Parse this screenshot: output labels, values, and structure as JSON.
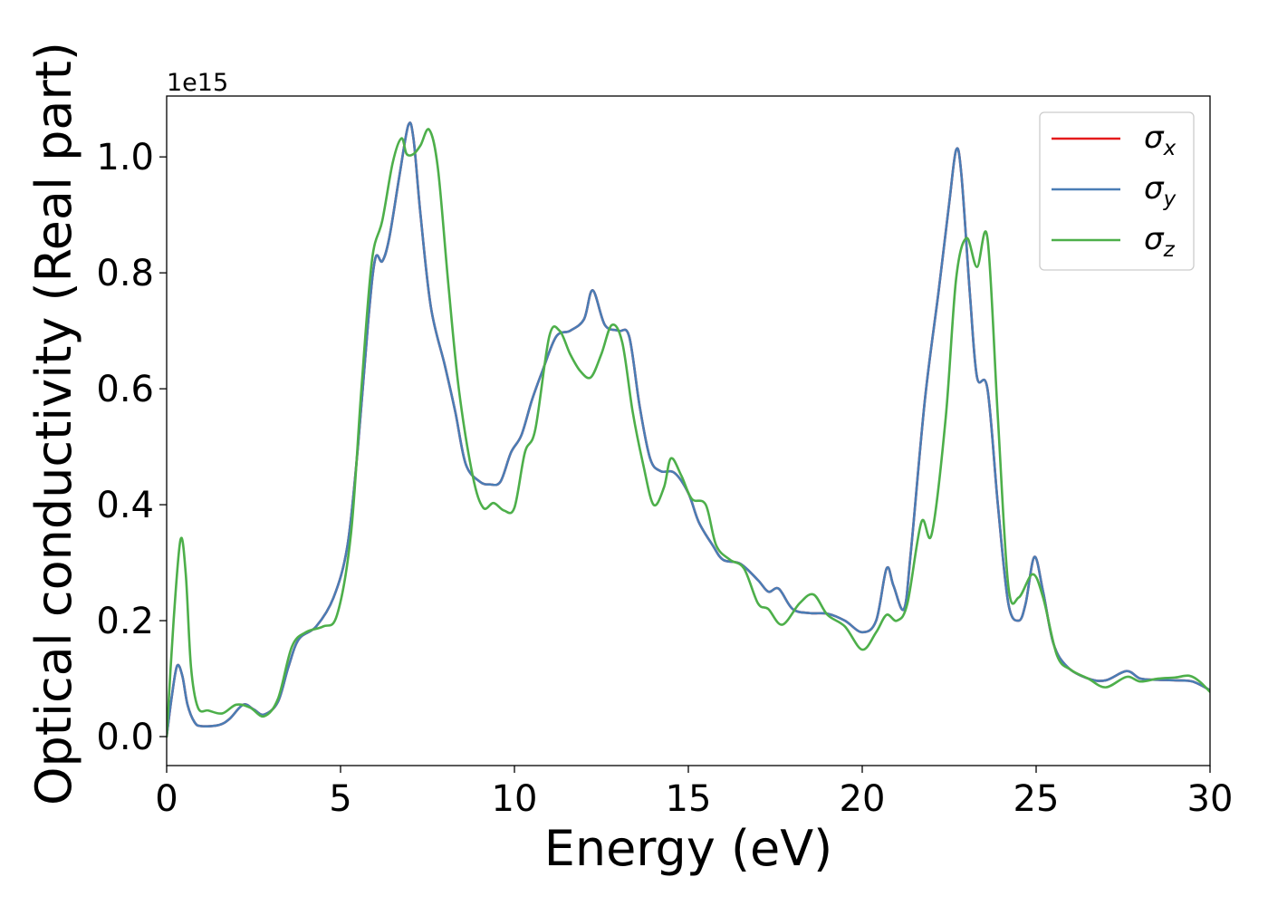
{
  "chart_data": {
    "type": "line",
    "title": "",
    "xlabel": "Energy (eV)",
    "ylabel": "Optical conductivity (Real part)",
    "y_offset_label": "1e15",
    "xlim": [
      0,
      30
    ],
    "ylim": [
      -0.05,
      1.105
    ],
    "xticks": [
      0,
      5,
      10,
      15,
      20,
      25,
      30
    ],
    "xtick_labels": [
      "0",
      "5",
      "10",
      "15",
      "20",
      "25",
      "30"
    ],
    "yticks": [
      0.0,
      0.2,
      0.4,
      0.6,
      0.8,
      1.0
    ],
    "ytick_labels": [
      "0.0",
      "0.2",
      "0.4",
      "0.6",
      "0.8",
      "1.0"
    ],
    "grid": false,
    "legend_position": "top-right",
    "series": [
      {
        "name": "σx",
        "symbol": "σ",
        "subscript": "x",
        "color": "#e41a1c",
        "points": [
          [
            0,
            0
          ],
          [
            0.15,
            0.07
          ],
          [
            0.3,
            0.122
          ],
          [
            0.45,
            0.105
          ],
          [
            0.6,
            0.055
          ],
          [
            0.8,
            0.025
          ],
          [
            1.0,
            0.018
          ],
          [
            1.5,
            0.02
          ],
          [
            1.8,
            0.03
          ],
          [
            2.2,
            0.055
          ],
          [
            2.5,
            0.047
          ],
          [
            2.8,
            0.038
          ],
          [
            3.2,
            0.06
          ],
          [
            3.5,
            0.12
          ],
          [
            3.8,
            0.168
          ],
          [
            4.3,
            0.19
          ],
          [
            4.8,
            0.24
          ],
          [
            5.2,
            0.33
          ],
          [
            5.5,
            0.5
          ],
          [
            5.8,
            0.72
          ],
          [
            6.0,
            0.825
          ],
          [
            6.2,
            0.82
          ],
          [
            6.4,
            0.86
          ],
          [
            6.7,
            0.97
          ],
          [
            6.95,
            1.055
          ],
          [
            7.1,
            1.03
          ],
          [
            7.3,
            0.9
          ],
          [
            7.6,
            0.74
          ],
          [
            8.0,
            0.64
          ],
          [
            8.3,
            0.56
          ],
          [
            8.6,
            0.47
          ],
          [
            9.0,
            0.44
          ],
          [
            9.3,
            0.435
          ],
          [
            9.6,
            0.44
          ],
          [
            9.9,
            0.49
          ],
          [
            10.2,
            0.52
          ],
          [
            10.5,
            0.58
          ],
          [
            10.8,
            0.63
          ],
          [
            11.2,
            0.69
          ],
          [
            11.6,
            0.7
          ],
          [
            12.0,
            0.72
          ],
          [
            12.25,
            0.77
          ],
          [
            12.6,
            0.71
          ],
          [
            13.0,
            0.7
          ],
          [
            13.3,
            0.69
          ],
          [
            13.6,
            0.57
          ],
          [
            13.9,
            0.48
          ],
          [
            14.2,
            0.458
          ],
          [
            14.6,
            0.455
          ],
          [
            15.0,
            0.42
          ],
          [
            15.3,
            0.37
          ],
          [
            15.7,
            0.33
          ],
          [
            16.0,
            0.305
          ],
          [
            16.5,
            0.298
          ],
          [
            17.0,
            0.27
          ],
          [
            17.3,
            0.25
          ],
          [
            17.6,
            0.255
          ],
          [
            18.0,
            0.22
          ],
          [
            18.5,
            0.213
          ],
          [
            19.0,
            0.212
          ],
          [
            19.5,
            0.2
          ],
          [
            20.0,
            0.18
          ],
          [
            20.4,
            0.2
          ],
          [
            20.7,
            0.29
          ],
          [
            20.9,
            0.26
          ],
          [
            21.2,
            0.22
          ],
          [
            21.4,
            0.32
          ],
          [
            21.8,
            0.58
          ],
          [
            22.2,
            0.77
          ],
          [
            22.5,
            0.92
          ],
          [
            22.7,
            1.012
          ],
          [
            22.85,
            0.97
          ],
          [
            23.1,
            0.76
          ],
          [
            23.3,
            0.62
          ],
          [
            23.6,
            0.6
          ],
          [
            23.9,
            0.4
          ],
          [
            24.2,
            0.23
          ],
          [
            24.5,
            0.2
          ],
          [
            24.7,
            0.23
          ],
          [
            24.95,
            0.31
          ],
          [
            25.2,
            0.25
          ],
          [
            25.5,
            0.16
          ],
          [
            25.9,
            0.12
          ],
          [
            26.5,
            0.1
          ],
          [
            27.0,
            0.097
          ],
          [
            27.6,
            0.113
          ],
          [
            28.0,
            0.1
          ],
          [
            28.5,
            0.098
          ],
          [
            29.0,
            0.097
          ],
          [
            29.5,
            0.095
          ],
          [
            30.0,
            0.08
          ]
        ]
      },
      {
        "name": "σy",
        "symbol": "σ",
        "subscript": "y",
        "color": "#4a7db5",
        "points": [
          [
            0,
            0
          ],
          [
            0.15,
            0.07
          ],
          [
            0.3,
            0.122
          ],
          [
            0.45,
            0.105
          ],
          [
            0.6,
            0.055
          ],
          [
            0.8,
            0.025
          ],
          [
            1.0,
            0.018
          ],
          [
            1.5,
            0.02
          ],
          [
            1.8,
            0.03
          ],
          [
            2.2,
            0.055
          ],
          [
            2.5,
            0.047
          ],
          [
            2.8,
            0.038
          ],
          [
            3.2,
            0.06
          ],
          [
            3.5,
            0.12
          ],
          [
            3.8,
            0.168
          ],
          [
            4.3,
            0.19
          ],
          [
            4.8,
            0.24
          ],
          [
            5.2,
            0.33
          ],
          [
            5.5,
            0.5
          ],
          [
            5.8,
            0.72
          ],
          [
            6.0,
            0.825
          ],
          [
            6.2,
            0.82
          ],
          [
            6.4,
            0.86
          ],
          [
            6.7,
            0.97
          ],
          [
            6.95,
            1.055
          ],
          [
            7.1,
            1.03
          ],
          [
            7.3,
            0.9
          ],
          [
            7.6,
            0.74
          ],
          [
            8.0,
            0.64
          ],
          [
            8.3,
            0.56
          ],
          [
            8.6,
            0.47
          ],
          [
            9.0,
            0.44
          ],
          [
            9.3,
            0.435
          ],
          [
            9.6,
            0.44
          ],
          [
            9.9,
            0.49
          ],
          [
            10.2,
            0.52
          ],
          [
            10.5,
            0.58
          ],
          [
            10.8,
            0.63
          ],
          [
            11.2,
            0.69
          ],
          [
            11.6,
            0.7
          ],
          [
            12.0,
            0.72
          ],
          [
            12.25,
            0.77
          ],
          [
            12.6,
            0.71
          ],
          [
            13.0,
            0.7
          ],
          [
            13.3,
            0.69
          ],
          [
            13.6,
            0.57
          ],
          [
            13.9,
            0.48
          ],
          [
            14.2,
            0.458
          ],
          [
            14.6,
            0.455
          ],
          [
            15.0,
            0.42
          ],
          [
            15.3,
            0.37
          ],
          [
            15.7,
            0.33
          ],
          [
            16.0,
            0.305
          ],
          [
            16.5,
            0.298
          ],
          [
            17.0,
            0.27
          ],
          [
            17.3,
            0.25
          ],
          [
            17.6,
            0.255
          ],
          [
            18.0,
            0.22
          ],
          [
            18.5,
            0.213
          ],
          [
            19.0,
            0.212
          ],
          [
            19.5,
            0.2
          ],
          [
            20.0,
            0.18
          ],
          [
            20.4,
            0.2
          ],
          [
            20.7,
            0.29
          ],
          [
            20.9,
            0.26
          ],
          [
            21.2,
            0.22
          ],
          [
            21.4,
            0.32
          ],
          [
            21.8,
            0.58
          ],
          [
            22.2,
            0.77
          ],
          [
            22.5,
            0.92
          ],
          [
            22.7,
            1.012
          ],
          [
            22.85,
            0.97
          ],
          [
            23.1,
            0.76
          ],
          [
            23.3,
            0.62
          ],
          [
            23.6,
            0.6
          ],
          [
            23.9,
            0.4
          ],
          [
            24.2,
            0.23
          ],
          [
            24.5,
            0.2
          ],
          [
            24.7,
            0.23
          ],
          [
            24.95,
            0.31
          ],
          [
            25.2,
            0.25
          ],
          [
            25.5,
            0.16
          ],
          [
            25.9,
            0.12
          ],
          [
            26.5,
            0.1
          ],
          [
            27.0,
            0.097
          ],
          [
            27.6,
            0.113
          ],
          [
            28.0,
            0.1
          ],
          [
            28.5,
            0.098
          ],
          [
            29.0,
            0.097
          ],
          [
            29.5,
            0.095
          ],
          [
            30.0,
            0.08
          ]
        ]
      },
      {
        "name": "σz",
        "symbol": "σ",
        "subscript": "z",
        "color": "#4daf4a",
        "points": [
          [
            0,
            0
          ],
          [
            0.2,
            0.2
          ],
          [
            0.4,
            0.34
          ],
          [
            0.55,
            0.28
          ],
          [
            0.7,
            0.12
          ],
          [
            0.9,
            0.05
          ],
          [
            1.2,
            0.045
          ],
          [
            1.6,
            0.04
          ],
          [
            2.0,
            0.055
          ],
          [
            2.4,
            0.05
          ],
          [
            2.8,
            0.035
          ],
          [
            3.2,
            0.065
          ],
          [
            3.6,
            0.155
          ],
          [
            4.0,
            0.18
          ],
          [
            4.5,
            0.19
          ],
          [
            4.9,
            0.21
          ],
          [
            5.3,
            0.35
          ],
          [
            5.6,
            0.6
          ],
          [
            5.9,
            0.82
          ],
          [
            6.2,
            0.89
          ],
          [
            6.5,
            0.99
          ],
          [
            6.75,
            1.032
          ],
          [
            6.9,
            1.005
          ],
          [
            7.1,
            1.005
          ],
          [
            7.3,
            1.02
          ],
          [
            7.55,
            1.047
          ],
          [
            7.8,
            0.98
          ],
          [
            8.1,
            0.78
          ],
          [
            8.4,
            0.6
          ],
          [
            8.8,
            0.45
          ],
          [
            9.1,
            0.395
          ],
          [
            9.4,
            0.403
          ],
          [
            9.7,
            0.39
          ],
          [
            10.0,
            0.395
          ],
          [
            10.3,
            0.49
          ],
          [
            10.6,
            0.53
          ],
          [
            11.0,
            0.69
          ],
          [
            11.3,
            0.7
          ],
          [
            11.6,
            0.66
          ],
          [
            11.9,
            0.63
          ],
          [
            12.2,
            0.62
          ],
          [
            12.5,
            0.66
          ],
          [
            12.8,
            0.71
          ],
          [
            13.1,
            0.68
          ],
          [
            13.4,
            0.56
          ],
          [
            13.7,
            0.47
          ],
          [
            14.0,
            0.4
          ],
          [
            14.3,
            0.43
          ],
          [
            14.5,
            0.48
          ],
          [
            14.8,
            0.45
          ],
          [
            15.1,
            0.41
          ],
          [
            15.5,
            0.4
          ],
          [
            15.8,
            0.33
          ],
          [
            16.2,
            0.305
          ],
          [
            16.6,
            0.29
          ],
          [
            17.0,
            0.23
          ],
          [
            17.3,
            0.22
          ],
          [
            17.7,
            0.193
          ],
          [
            18.2,
            0.23
          ],
          [
            18.6,
            0.245
          ],
          [
            19.0,
            0.21
          ],
          [
            19.5,
            0.19
          ],
          [
            20.0,
            0.15
          ],
          [
            20.4,
            0.18
          ],
          [
            20.7,
            0.21
          ],
          [
            21.0,
            0.2
          ],
          [
            21.3,
            0.23
          ],
          [
            21.7,
            0.37
          ],
          [
            22.0,
            0.35
          ],
          [
            22.4,
            0.55
          ],
          [
            22.7,
            0.79
          ],
          [
            23.0,
            0.86
          ],
          [
            23.3,
            0.81
          ],
          [
            23.6,
            0.86
          ],
          [
            23.9,
            0.55
          ],
          [
            24.2,
            0.26
          ],
          [
            24.5,
            0.24
          ],
          [
            24.9,
            0.28
          ],
          [
            25.2,
            0.24
          ],
          [
            25.6,
            0.14
          ],
          [
            26.0,
            0.115
          ],
          [
            26.5,
            0.1
          ],
          [
            27.0,
            0.085
          ],
          [
            27.6,
            0.103
          ],
          [
            28.0,
            0.095
          ],
          [
            28.5,
            0.1
          ],
          [
            29.0,
            0.102
          ],
          [
            29.4,
            0.105
          ],
          [
            29.7,
            0.095
          ],
          [
            30.0,
            0.077
          ]
        ]
      }
    ]
  }
}
